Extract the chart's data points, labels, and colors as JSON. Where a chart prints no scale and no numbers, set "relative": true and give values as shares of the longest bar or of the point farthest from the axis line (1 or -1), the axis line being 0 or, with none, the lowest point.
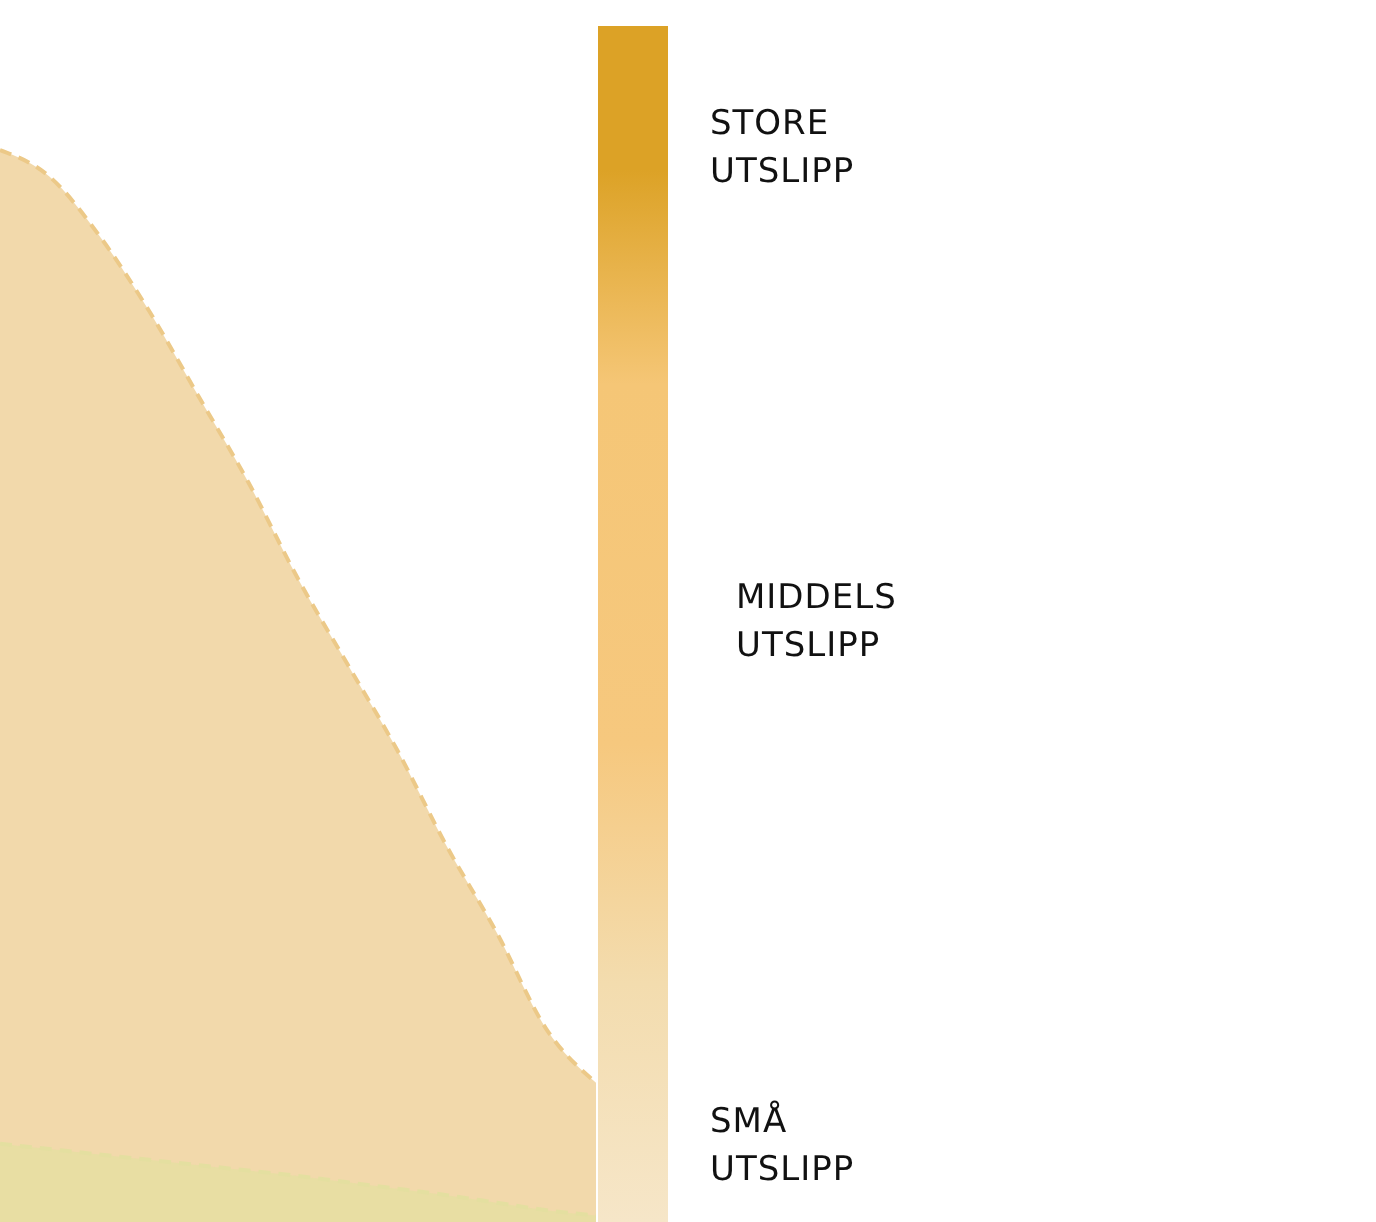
{
  "chart_data": {
    "type": "area",
    "relative": true,
    "line_style": "dashed",
    "categories": [
      null,
      null,
      null,
      null,
      null,
      null,
      null,
      null,
      null,
      null,
      null,
      null,
      null
    ],
    "series": [
      {
        "color": "#ecc988",
        "values": [
          1,
          0.975,
          0.92,
          0.85,
          0.77,
          0.69,
          0.6,
          0.52,
          0.44,
          0.35,
          0.27,
          0.18,
          0.13
        ]
      },
      {
        "color": "#e4dfa0",
        "values": [
          0.073,
          0.068,
          0.063,
          0.058,
          0.053,
          0.048,
          0.043,
          0.037,
          0.031,
          0.025,
          0.018,
          0.011,
          0.006
        ]
      }
    ],
    "annotations": [
      "STORE\nUTSLIPP",
      "MIDDELS\nUTSLIPP",
      "SMÅ\nUTSLIPP"
    ]
  }
}
